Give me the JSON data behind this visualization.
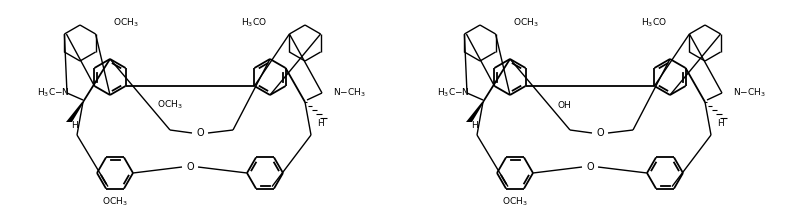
{
  "figsize": [
    8.0,
    2.14
  ],
  "dpi": 100,
  "background": "#ffffff",
  "mol1": {
    "label_och3_topleft": "OCH$_3$",
    "label_h3co_topright": "H$_3$CO",
    "label_n_left": "H$_3$C$-$N",
    "label_och3_mid": "OCH$_3$",
    "label_n_right": "N$-$CH$_3$",
    "label_h_left": "H",
    "label_h_right": "H",
    "label_o_upper": "O",
    "label_o_lower": "O",
    "label_och3_bottom": "OCH$_3$"
  },
  "mol2": {
    "label_och3_topleft": "OCH$_3$",
    "label_h3co_topright": "H$_3$CO",
    "label_n_left": "H$_3$C$-$N",
    "label_oh_mid": "OH",
    "label_n_right": "N$-$CH$_3$",
    "label_h_left": "H",
    "label_h_right": "H",
    "label_o_upper": "O",
    "label_o_lower": "O",
    "label_och3_bottom": "OCH$_3$"
  }
}
